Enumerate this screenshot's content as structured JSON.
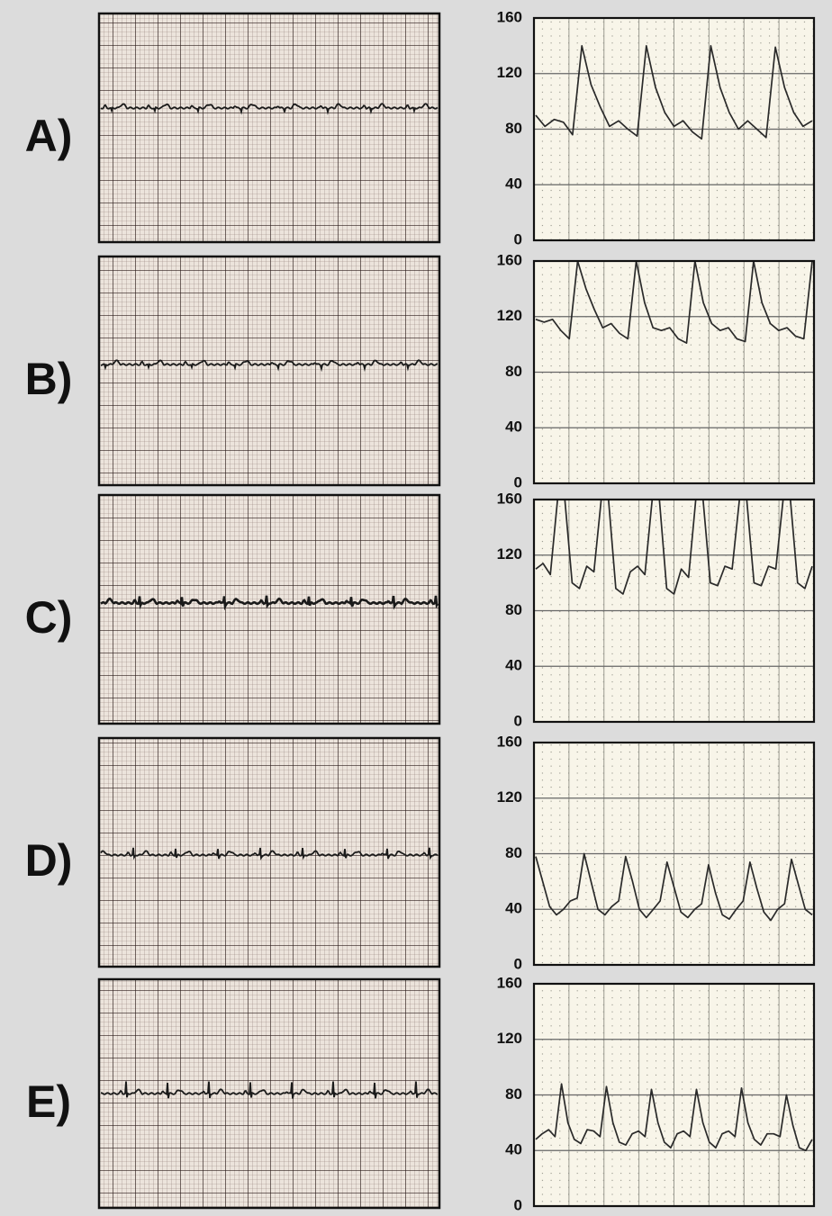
{
  "chart_data": [
    {
      "type": "line",
      "title": "A)",
      "color": "#2a2a2a",
      "grid": true,
      "ylim": [
        0,
        160
      ],
      "yticks": [
        0,
        40,
        80,
        120,
        160
      ],
      "values": [
        90,
        82,
        87,
        85,
        76,
        140,
        112,
        96,
        82,
        86,
        80,
        75,
        140,
        110,
        92,
        82,
        86,
        78,
        73,
        140,
        110,
        92,
        80,
        86,
        80,
        74,
        139,
        110,
        92,
        82,
        86
      ]
    },
    {
      "type": "line",
      "title": "B)",
      "color": "#2a2a2a",
      "grid": true,
      "ylim": [
        0,
        160
      ],
      "yticks": [
        0,
        40,
        80,
        120,
        160
      ],
      "values": [
        118,
        116,
        118,
        110,
        104,
        160,
        140,
        125,
        112,
        115,
        108,
        104,
        160,
        130,
        112,
        110,
        112,
        104,
        101,
        160,
        130,
        115,
        110,
        112,
        104,
        102,
        160,
        130,
        115,
        110,
        112,
        106,
        104,
        160
      ]
    },
    {
      "type": "line",
      "title": "C)",
      "color": "#2a2a2a",
      "grid": true,
      "ylim": [
        0,
        160
      ],
      "yticks": [
        0,
        40,
        80,
        120,
        160
      ],
      "values": [
        110,
        114,
        106,
        160,
        160,
        100,
        96,
        112,
        108,
        160,
        160,
        96,
        92,
        108,
        112,
        106,
        160,
        160,
        96,
        92,
        110,
        104,
        160,
        160,
        100,
        98,
        112,
        110,
        160,
        160,
        100,
        98,
        112,
        110,
        160,
        160,
        100,
        96,
        112
      ]
    },
    {
      "type": "line",
      "title": "D)",
      "color": "#2a2a2a",
      "grid": true,
      "ylim": [
        0,
        160
      ],
      "yticks": [
        0,
        40,
        80,
        120,
        160
      ],
      "values": [
        78,
        60,
        42,
        36,
        40,
        46,
        48,
        80,
        60,
        40,
        36,
        42,
        46,
        78,
        60,
        40,
        34,
        40,
        46,
        74,
        56,
        38,
        34,
        40,
        44,
        72,
        52,
        36,
        33,
        40,
        46,
        74,
        55,
        38,
        32,
        40,
        44,
        76,
        58,
        40,
        36
      ]
    },
    {
      "type": "line",
      "title": "E)",
      "color": "#2a2a2a",
      "grid": true,
      "ylim": [
        0,
        160
      ],
      "yticks": [
        0,
        40,
        80,
        120,
        160
      ],
      "values": [
        48,
        52,
        55,
        50,
        88,
        60,
        48,
        45,
        55,
        54,
        50,
        86,
        60,
        46,
        44,
        52,
        54,
        50,
        84,
        60,
        46,
        42,
        52,
        54,
        50,
        84,
        60,
        46,
        42,
        52,
        54,
        50,
        85,
        60,
        48,
        44,
        52,
        52,
        50,
        80,
        58,
        42,
        40,
        48
      ]
    }
  ]
}
